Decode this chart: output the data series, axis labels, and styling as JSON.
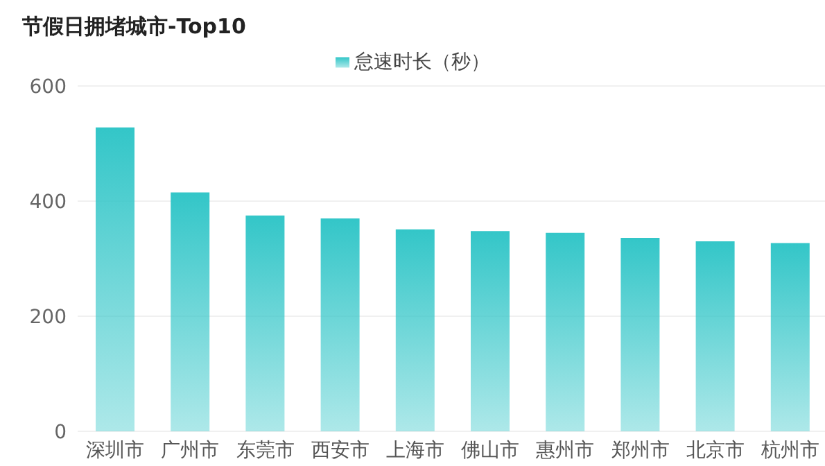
{
  "chart_data": {
    "type": "bar",
    "title": "节假日拥堵城市-Top10",
    "categories": [
      "深圳市",
      "广州市",
      "东莞市",
      "西安市",
      "上海市",
      "佛山市",
      "惠州市",
      "郑州市",
      "北京市",
      "杭州市"
    ],
    "series": [
      {
        "name": "怠速时长（秒）",
        "color": "#33c6c8",
        "values": [
          528,
          415,
          375,
          370,
          351,
          348,
          345,
          336,
          330,
          327
        ]
      }
    ],
    "ylim": [
      0,
      600
    ],
    "yticks": [
      0,
      200,
      400,
      600
    ],
    "grid": "y",
    "legend": "top"
  }
}
